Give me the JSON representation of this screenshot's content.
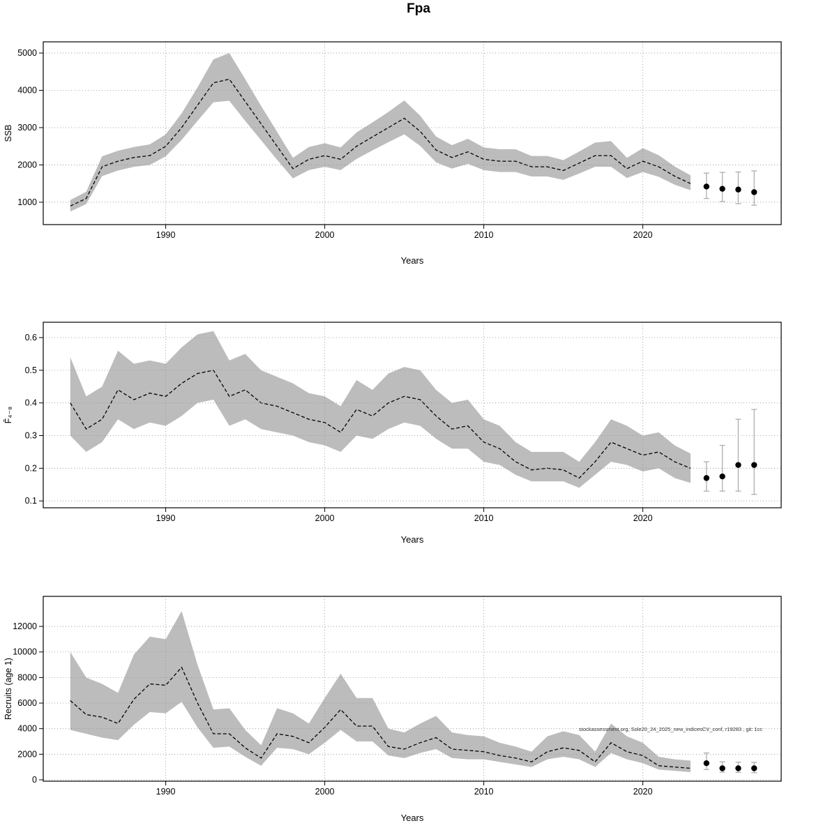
{
  "figure": {
    "title": "Fpa",
    "watermark": "stockassessment.org, Sole20_24_2025_new_indicesCV_conf, r19283 , git: 1cc"
  },
  "chart_data": [
    {
      "type": "line",
      "name": "ssb",
      "ylabel": "SSB",
      "xlabel": "Years",
      "grid": true,
      "xticks": [
        1990,
        2000,
        2010,
        2020
      ],
      "xlim": [
        1982.3,
        2028.7
      ],
      "yticks": [
        1000,
        2000,
        3000,
        4000,
        5000
      ],
      "ylim": [
        400,
        5300
      ],
      "years": [
        1984,
        1985,
        1986,
        1987,
        1988,
        1989,
        1990,
        1991,
        1992,
        1993,
        1994,
        1995,
        1996,
        1997,
        1998,
        1999,
        2000,
        2001,
        2002,
        2003,
        2004,
        2005,
        2006,
        2007,
        2008,
        2009,
        2010,
        2011,
        2012,
        2013,
        2014,
        2015,
        2016,
        2017,
        2018,
        2019,
        2020,
        2021,
        2022,
        2023
      ],
      "values": [
        900,
        1100,
        1950,
        2100,
        2200,
        2250,
        2500,
        3000,
        3600,
        4200,
        4300,
        3700,
        3100,
        2500,
        1900,
        2150,
        2250,
        2150,
        2500,
        2750,
        3000,
        3250,
        2900,
        2400,
        2200,
        2350,
        2150,
        2100,
        2100,
        1950,
        1950,
        1850,
        2050,
        2250,
        2250,
        1900,
        2100,
        1950,
        1700,
        1500
      ],
      "band_lower": [
        750,
        950,
        1700,
        1850,
        1950,
        2000,
        2230,
        2670,
        3180,
        3680,
        3720,
        3180,
        2660,
        2140,
        1640,
        1860,
        1950,
        1860,
        2160,
        2390,
        2610,
        2820,
        2510,
        2070,
        1900,
        2030,
        1860,
        1810,
        1810,
        1690,
        1690,
        1600,
        1770,
        1950,
        1950,
        1650,
        1810,
        1680,
        1470,
        1320
      ],
      "band_upper": [
        1060,
        1280,
        2230,
        2380,
        2480,
        2550,
        2820,
        3380,
        4080,
        4830,
        5000,
        4300,
        3580,
        2890,
        2190,
        2480,
        2580,
        2470,
        2870,
        3140,
        3420,
        3730,
        3320,
        2760,
        2530,
        2700,
        2470,
        2420,
        2420,
        2240,
        2240,
        2130,
        2360,
        2600,
        2640,
        2190,
        2450,
        2260,
        1960,
        1720
      ],
      "forecast": {
        "years": [
          2024,
          2025,
          2026,
          2027
        ],
        "values": [
          1420,
          1360,
          1340,
          1270
        ],
        "lower": [
          1100,
          1020,
          960,
          920
        ],
        "upper": [
          1780,
          1800,
          1810,
          1840
        ]
      }
    },
    {
      "type": "line",
      "name": "fbar",
      "ylabel": "F̄₄₋₈",
      "xlabel": "Years",
      "grid": true,
      "xticks": [
        1990,
        2000,
        2010,
        2020
      ],
      "xlim": [
        1982.3,
        2028.7
      ],
      "yticks": [
        0.1,
        0.2,
        0.3,
        0.4,
        0.5,
        0.6
      ],
      "ylim": [
        0.079,
        0.647
      ],
      "years": [
        1984,
        1985,
        1986,
        1987,
        1988,
        1989,
        1990,
        1991,
        1992,
        1993,
        1994,
        1995,
        1996,
        1997,
        1998,
        1999,
        2000,
        2001,
        2002,
        2003,
        2004,
        2005,
        2006,
        2007,
        2008,
        2009,
        2010,
        2011,
        2012,
        2013,
        2014,
        2015,
        2016,
        2017,
        2018,
        2019,
        2020,
        2021,
        2022,
        2023
      ],
      "values": [
        0.4,
        0.32,
        0.35,
        0.44,
        0.41,
        0.43,
        0.42,
        0.46,
        0.49,
        0.5,
        0.42,
        0.44,
        0.4,
        0.39,
        0.37,
        0.35,
        0.34,
        0.31,
        0.38,
        0.36,
        0.4,
        0.42,
        0.41,
        0.36,
        0.32,
        0.33,
        0.28,
        0.26,
        0.22,
        0.195,
        0.2,
        0.195,
        0.17,
        0.22,
        0.28,
        0.26,
        0.24,
        0.25,
        0.22,
        0.2
      ],
      "band_lower": [
        0.3,
        0.25,
        0.28,
        0.35,
        0.32,
        0.34,
        0.33,
        0.36,
        0.4,
        0.41,
        0.33,
        0.35,
        0.32,
        0.31,
        0.3,
        0.28,
        0.27,
        0.25,
        0.3,
        0.29,
        0.32,
        0.34,
        0.33,
        0.29,
        0.26,
        0.26,
        0.22,
        0.21,
        0.18,
        0.16,
        0.16,
        0.16,
        0.14,
        0.18,
        0.22,
        0.21,
        0.19,
        0.2,
        0.17,
        0.155
      ],
      "band_upper": [
        0.54,
        0.42,
        0.45,
        0.56,
        0.52,
        0.53,
        0.52,
        0.57,
        0.61,
        0.62,
        0.53,
        0.55,
        0.5,
        0.48,
        0.46,
        0.43,
        0.42,
        0.39,
        0.47,
        0.44,
        0.49,
        0.51,
        0.5,
        0.44,
        0.4,
        0.41,
        0.35,
        0.33,
        0.28,
        0.25,
        0.25,
        0.25,
        0.22,
        0.28,
        0.35,
        0.33,
        0.3,
        0.31,
        0.27,
        0.245
      ],
      "forecast": {
        "years": [
          2024,
          2025,
          2026,
          2027
        ],
        "values": [
          0.17,
          0.175,
          0.21,
          0.21
        ],
        "lower": [
          0.13,
          0.13,
          0.13,
          0.12
        ],
        "upper": [
          0.22,
          0.27,
          0.35,
          0.38
        ]
      }
    },
    {
      "type": "line",
      "name": "recruits",
      "ylabel": "Recruits (age 1)",
      "xlabel": "Years",
      "grid": true,
      "xticks": [
        1990,
        2000,
        2010,
        2020
      ],
      "xlim": [
        1982.3,
        2028.7
      ],
      "yticks": [
        0,
        2000,
        4000,
        6000,
        8000,
        10000,
        12000
      ],
      "ylim": [
        -110,
        14350
      ],
      "years": [
        1984,
        1985,
        1986,
        1987,
        1988,
        1989,
        1990,
        1991,
        1992,
        1993,
        1994,
        1995,
        1996,
        1997,
        1998,
        1999,
        2000,
        2001,
        2002,
        2003,
        2004,
        2005,
        2006,
        2007,
        2008,
        2009,
        2010,
        2011,
        2012,
        2013,
        2014,
        2015,
        2016,
        2017,
        2018,
        2019,
        2020,
        2021,
        2022,
        2023
      ],
      "values": [
        6200,
        5100,
        4900,
        4400,
        6300,
        7500,
        7400,
        8800,
        6000,
        3600,
        3600,
        2500,
        1700,
        3600,
        3400,
        2900,
        4100,
        5500,
        4200,
        4200,
        2600,
        2400,
        2900,
        3300,
        2400,
        2300,
        2200,
        1900,
        1700,
        1400,
        2200,
        2500,
        2300,
        1400,
        2900,
        2200,
        1900,
        1100,
        1000,
        900
      ],
      "band_lower": [
        3900,
        3600,
        3300,
        3100,
        4300,
        5300,
        5200,
        6100,
        4100,
        2500,
        2600,
        1800,
        1100,
        2500,
        2400,
        2000,
        2900,
        3900,
        3000,
        3000,
        1900,
        1700,
        2100,
        2400,
        1700,
        1600,
        1600,
        1400,
        1200,
        1000,
        1600,
        1800,
        1600,
        1000,
        2100,
        1600,
        1300,
        800,
        700,
        600
      ],
      "band_upper": [
        10000,
        8000,
        7500,
        6800,
        9800,
        11200,
        11000,
        13200,
        9000,
        5500,
        5600,
        3900,
        2700,
        5600,
        5200,
        4400,
        6400,
        8300,
        6400,
        6400,
        4000,
        3700,
        4400,
        5000,
        3700,
        3500,
        3400,
        2900,
        2600,
        2200,
        3400,
        3800,
        3500,
        2200,
        4400,
        3400,
        2900,
        1800,
        1600,
        1500
      ],
      "forecast": {
        "years": [
          2024,
          2025,
          2026,
          2027
        ],
        "values": [
          1300,
          900,
          900,
          900
        ],
        "lower": [
          800,
          600,
          580,
          560
        ],
        "upper": [
          2100,
          1400,
          1380,
          1360
        ]
      }
    }
  ]
}
